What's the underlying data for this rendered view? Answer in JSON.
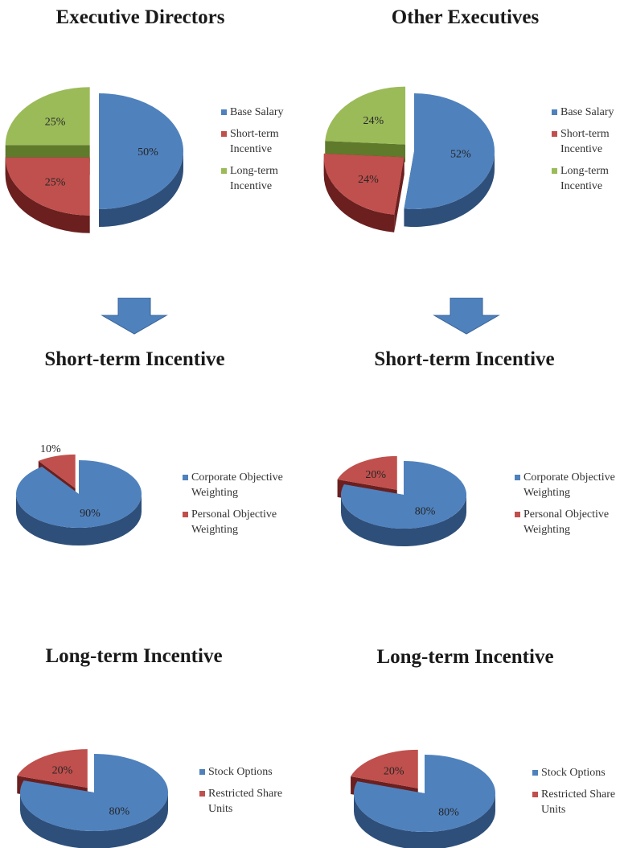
{
  "titles": {
    "exec_directors": "Executive Directors",
    "other_executives": "Other Executives",
    "sti_left": "Short-term Incentive",
    "sti_right": "Short-term Incentive",
    "lti_left": "Long-term Incentive",
    "lti_right": "Long-term Incentive"
  },
  "colors": {
    "blue": "#4f81bd",
    "blue_side": "#2e4f7a",
    "red": "#c0504d",
    "red_side": "#6b1f1f",
    "green": "#9bbb59",
    "green_side": "#5f7a2a",
    "arrow": "#4f81bd"
  },
  "chart_data": [
    {
      "type": "pie",
      "id": "mix_directors",
      "title": "Executive Directors",
      "labels": [
        "Base Salary",
        "Short-term Incentive",
        "Long-term Incentive"
      ],
      "values": [
        50,
        25,
        25
      ],
      "display": [
        "50%",
        "25%",
        "25%"
      ],
      "legend": [
        "Base Salary",
        "Short-term\nIncentive",
        "Long-term\nIncentive"
      ],
      "colors": [
        "blue",
        "red",
        "green"
      ],
      "legend_position": "right"
    },
    {
      "type": "pie",
      "id": "mix_others",
      "title": "Other Executives",
      "labels": [
        "Base Salary",
        "Short-term Incentive",
        "Long-term Incentive"
      ],
      "values": [
        52,
        24,
        24
      ],
      "display": [
        "52%",
        "24%",
        "24%"
      ],
      "legend": [
        "Base Salary",
        "Short-term\nIncentive",
        "Long-term\nIncentive"
      ],
      "colors": [
        "blue",
        "red",
        "green"
      ],
      "legend_position": "right"
    },
    {
      "type": "pie",
      "id": "sti_directors",
      "title": "Short-term Incentive",
      "labels": [
        "Corporate Objective Weighting",
        "Personal Objective Weighting"
      ],
      "values": [
        90,
        10
      ],
      "display": [
        "90%",
        "10%"
      ],
      "legend": [
        "Corporate Objective\nWeighting",
        "Personal Objective\nWeighting"
      ],
      "colors": [
        "blue",
        "red"
      ],
      "legend_position": "right"
    },
    {
      "type": "pie",
      "id": "sti_others",
      "title": "Short-term Incentive",
      "labels": [
        "Corporate Objective Weighting",
        "Personal Objective Weighting"
      ],
      "values": [
        80,
        20
      ],
      "display": [
        "80%",
        "20%"
      ],
      "legend": [
        "Corporate Objective\nWeighting",
        "Personal Objective\nWeighting"
      ],
      "colors": [
        "blue",
        "red"
      ],
      "legend_position": "right"
    },
    {
      "type": "pie",
      "id": "lti_directors",
      "title": "Long-term Incentive",
      "labels": [
        "Stock Options",
        "Restricted Share Units"
      ],
      "values": [
        80,
        20
      ],
      "display": [
        "80%",
        "20%"
      ],
      "legend": [
        "Stock Options",
        "Restricted Share\nUnits"
      ],
      "colors": [
        "blue",
        "red"
      ],
      "legend_position": "right"
    },
    {
      "type": "pie",
      "id": "lti_others",
      "title": "Long-term Incentive",
      "labels": [
        "Stock Options",
        "Restricted Share Units"
      ],
      "values": [
        80,
        20
      ],
      "display": [
        "80%",
        "20%"
      ],
      "legend": [
        "Stock Options",
        "Restricted Share\nUnits"
      ],
      "colors": [
        "blue",
        "red"
      ],
      "legend_position": "right"
    }
  ]
}
